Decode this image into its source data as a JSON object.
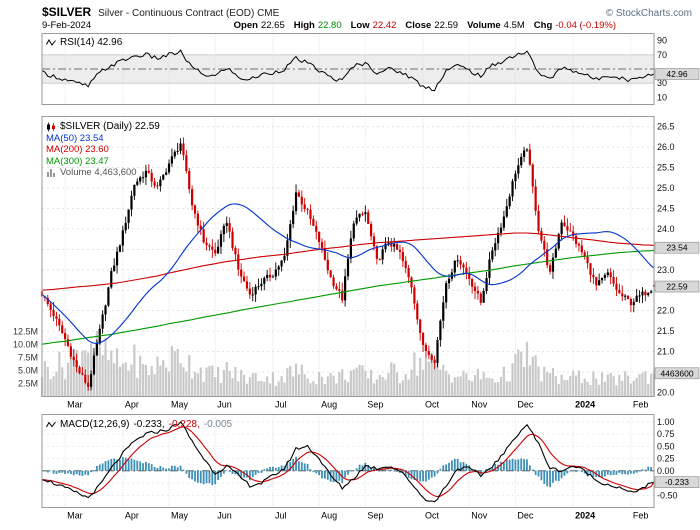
{
  "header": {
    "symbol": "$SILVER",
    "description": "Silver - Continuous Contract (EOD) CME",
    "copyright": "© StockCharts.com",
    "date": "9-Feb-2024",
    "quote": {
      "open_label": "Open",
      "open": "22.65",
      "high_label": "High",
      "high": "22.80",
      "low_label": "Low",
      "low": "22.42",
      "close_label": "Close",
      "close": "22.59",
      "volume_label": "Volume",
      "volume": "4.5M",
      "chg_label": "Chg",
      "chg": "-0.04 (-0.19%)"
    }
  },
  "colors": {
    "up": "#000000",
    "down": "#cc0000",
    "volume": "#c9c9c9",
    "volume_text": "#555555",
    "histogram": "#3d8fb5",
    "macd_line": "#000000",
    "signal": "#cc0000",
    "hist_label": "#778899",
    "pos": "#008800",
    "neg": "#cc0000",
    "label_box_bg": "#d8d8d8",
    "copyright": "#5a7184"
  },
  "x_axis": {
    "months": [
      "Mar",
      "Apr",
      "May",
      "Jun",
      "Jul",
      "Aug",
      "Sep",
      "Oct",
      "Nov",
      "Dec",
      "2024",
      "Feb"
    ],
    "bold_label": "2024",
    "month_start_index": [
      2,
      7,
      11,
      15,
      20,
      24,
      28,
      33,
      37,
      41,
      46,
      51
    ]
  },
  "chart_data": [
    {
      "id": "rsi",
      "type": "line",
      "title": "RSI(14) 42.96",
      "last_value": 42.96,
      "ylim": [
        0,
        100
      ],
      "yticks": [
        "90",
        "70",
        "30",
        "10"
      ],
      "overbought": 70,
      "oversold": 30,
      "midline": 50,
      "values": [
        45,
        40,
        35,
        30,
        26,
        45,
        55,
        62,
        68,
        70,
        65,
        70,
        74,
        52,
        42,
        40,
        52,
        38,
        35,
        42,
        45,
        50,
        65,
        58,
        48,
        38,
        33,
        55,
        58,
        45,
        50,
        46,
        38,
        25,
        22,
        48,
        55,
        48,
        40,
        55,
        62,
        70,
        74,
        45,
        35,
        52,
        48,
        42,
        35,
        42,
        38,
        34,
        40,
        42.96
      ]
    },
    {
      "id": "price",
      "type": "candlestick",
      "title": "$SILVER (Daily) 22.59",
      "last_close": 22.59,
      "last_close_label": "22.59",
      "ylim": [
        19.9,
        26.75
      ],
      "yticks": [
        "26.5",
        "26.0",
        "25.5",
        "25.0",
        "24.5",
        "24.0",
        "23.0",
        "22.0",
        "21.5",
        "21.0",
        "20.5",
        "20.0"
      ],
      "overlays": [
        {
          "label": "MA(50) 23.54",
          "value": 23.54,
          "color": "#0033cc",
          "window": 50
        },
        {
          "label": "MA(200) 23.60",
          "value": 23.6,
          "color": "#cc0000",
          "window": 200
        },
        {
          "label": "MA(300) 23.47",
          "value": 23.47,
          "color": "#009900",
          "window": 300
        }
      ],
      "ma50_box_label": "23.54",
      "ma50_box_value": 23.54,
      "volume_legend": "Volume 4,463,600",
      "volume_last_m": 4.4636,
      "volume_box_label": "4463600",
      "volume_yticks": [
        {
          "label": "12.5M",
          "value": 12.5
        },
        {
          "label": "10.0M",
          "value": 10
        },
        {
          "label": "7.5M",
          "value": 7.5
        },
        {
          "label": "5.0M",
          "value": 5
        },
        {
          "label": "2.5M",
          "value": 2.5
        }
      ],
      "closes": [
        22.4,
        21.9,
        21.3,
        20.6,
        20.15,
        21.5,
        22.9,
        23.9,
        25.1,
        25.4,
        25.0,
        25.6,
        26.1,
        24.6,
        23.7,
        23.4,
        24.2,
        23.0,
        22.4,
        22.7,
        22.9,
        23.3,
        24.9,
        24.4,
        23.7,
        22.8,
        22.3,
        24.2,
        24.4,
        23.2,
        23.7,
        23.4,
        22.6,
        21.1,
        20.8,
        22.7,
        23.3,
        22.8,
        22.2,
        23.5,
        24.3,
        25.4,
        26.0,
        24.0,
        22.9,
        24.2,
        23.8,
        23.3,
        22.6,
        22.9,
        22.4,
        22.2,
        22.4,
        22.59
      ],
      "volumes_m": [
        5,
        6,
        6,
        8,
        11,
        9,
        7,
        6,
        7,
        5,
        6,
        7,
        8,
        6,
        5,
        4,
        5,
        4,
        3.5,
        4,
        3.5,
        4,
        5,
        4,
        4,
        3.5,
        4,
        5,
        4,
        3.5,
        5,
        4,
        6,
        7,
        6,
        5,
        4,
        3.5,
        4,
        3.5,
        4,
        6,
        8,
        5,
        4,
        3.5,
        3.5,
        4,
        3.5,
        3,
        3.5,
        3.5,
        4,
        4.5
      ],
      "ma200": [
        22.5,
        22.52,
        22.55,
        22.58,
        22.6,
        22.63,
        22.66,
        22.7,
        22.75,
        22.8,
        22.85,
        22.92,
        22.98,
        23.04,
        23.1,
        23.15,
        23.2,
        23.24,
        23.28,
        23.32,
        23.35,
        23.38,
        23.42,
        23.46,
        23.5,
        23.53,
        23.56,
        23.6,
        23.63,
        23.66,
        23.68,
        23.7,
        23.72,
        23.74,
        23.76,
        23.78,
        23.8,
        23.82,
        23.84,
        23.86,
        23.88,
        23.9,
        23.9,
        23.88,
        23.85,
        23.82,
        23.78,
        23.75,
        23.72,
        23.68,
        23.65,
        23.63,
        23.61,
        23.6
      ],
      "ma300": [
        21.18,
        21.22,
        21.25,
        21.3,
        21.34,
        21.38,
        21.42,
        21.47,
        21.52,
        21.57,
        21.62,
        21.68,
        21.73,
        21.78,
        21.84,
        21.89,
        21.94,
        22.0,
        22.05,
        22.1,
        22.15,
        22.2,
        22.25,
        22.3,
        22.35,
        22.4,
        22.45,
        22.5,
        22.55,
        22.6,
        22.64,
        22.68,
        22.72,
        22.76,
        22.8,
        22.84,
        22.88,
        22.92,
        22.96,
        23.0,
        23.05,
        23.1,
        23.14,
        23.18,
        23.22,
        23.26,
        23.3,
        23.33,
        23.36,
        23.39,
        23.42,
        23.44,
        23.46,
        23.47
      ]
    },
    {
      "id": "macd",
      "type": "line_histogram",
      "title": "MACD(12,26,9)",
      "values": {
        "macd_label": "-0.233,",
        "signal_label": "-0.228,",
        "hist_label": "-0.005",
        "macd": -0.233,
        "signal": -0.228,
        "hist": -0.005
      },
      "ylim": [
        -0.75,
        1.15
      ],
      "yticks": [
        "1.00",
        "0.75",
        "0.50",
        "0.25",
        "0.00",
        "-0.50"
      ],
      "box_label": "-0.233",
      "box_value": -0.233,
      "macd_series": [
        -0.15,
        -0.25,
        -0.35,
        -0.45,
        -0.55,
        -0.3,
        0.05,
        0.35,
        0.6,
        0.75,
        0.8,
        0.85,
        1.0,
        0.6,
        0.25,
        -0.05,
        0.1,
        -0.1,
        -0.3,
        -0.25,
        -0.1,
        0.05,
        0.45,
        0.5,
        0.25,
        -0.1,
        -0.35,
        -0.15,
        0.1,
        0.05,
        0.1,
        0.0,
        -0.25,
        -0.55,
        -0.65,
        -0.3,
        0.05,
        0.05,
        -0.1,
        0.1,
        0.35,
        0.7,
        0.95,
        0.55,
        0.05,
        0.0,
        0.1,
        0.0,
        -0.2,
        -0.28,
        -0.35,
        -0.45,
        -0.35,
        -0.233
      ]
    }
  ]
}
